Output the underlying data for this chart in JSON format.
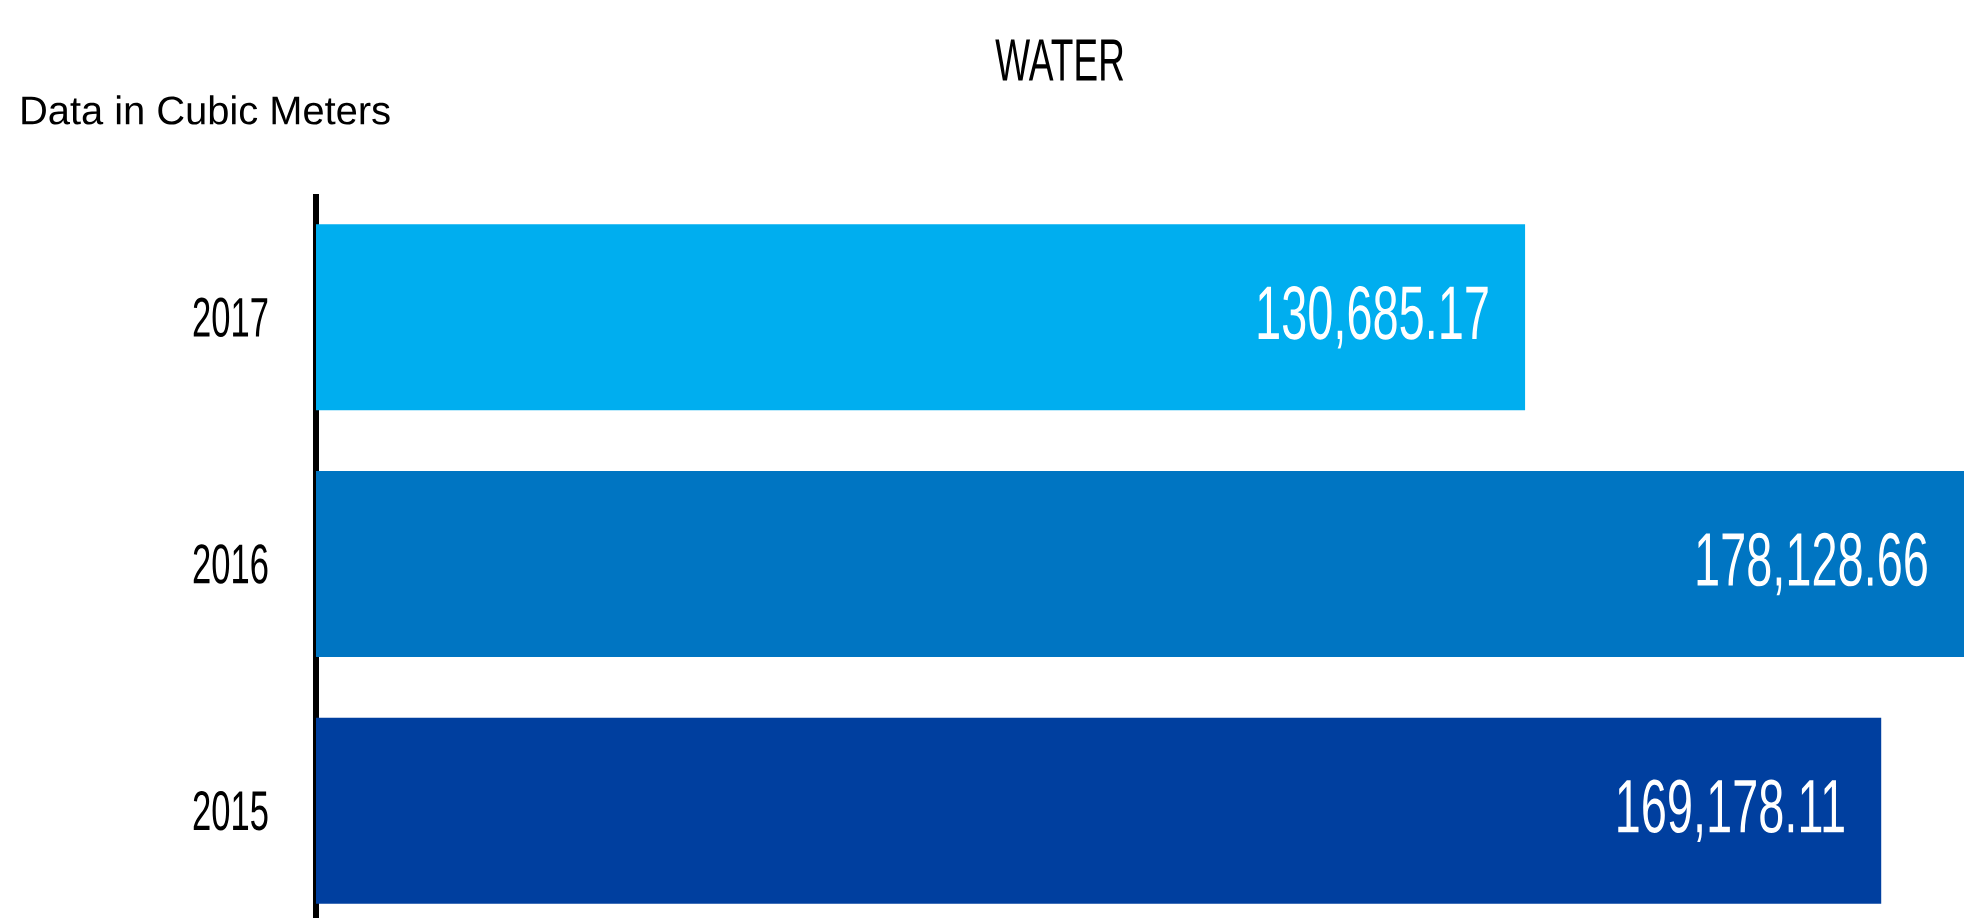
{
  "chart_data": {
    "type": "bar",
    "orientation": "horizontal",
    "title": "WATER",
    "subtitle": "Data in Cubic Meters",
    "categories": [
      "2017",
      "2016",
      "2015"
    ],
    "values": [
      130685.17,
      178128.66,
      169178.11
    ],
    "value_labels": [
      "130,685.17",
      "178,128.66",
      "169,178.11"
    ],
    "colors": [
      "#00aeef",
      "#0075c2",
      "#003f9f"
    ],
    "xlim": [
      0,
      178128.66
    ],
    "tick_labels": "y",
    "grid": false
  }
}
